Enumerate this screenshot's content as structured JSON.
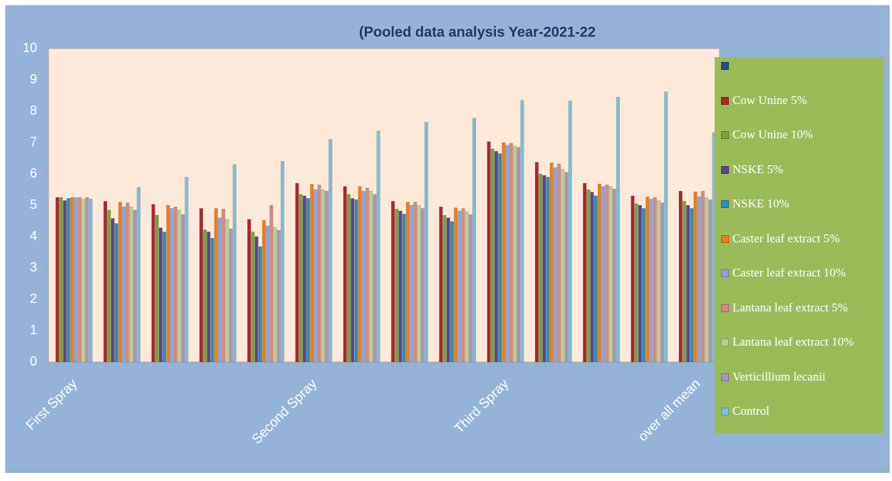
{
  "chart_data": {
    "type": "bar",
    "title": "(Pooled data analysis Year-2021-22",
    "categories": [
      "First Spray",
      null,
      null,
      null,
      null,
      "Second Spray",
      null,
      null,
      null,
      "Third Spray",
      null,
      null,
      null,
      "over all mean"
    ],
    "ylim": [
      0,
      10
    ],
    "yticks": [
      0,
      1,
      2,
      3,
      4,
      5,
      6,
      7,
      8,
      9,
      10
    ],
    "legend": "right",
    "series": [
      {
        "name": null,
        "color": "#2a4e8c",
        "values": [
          null,
          null,
          null,
          null,
          null,
          null,
          null,
          null,
          null,
          null,
          null,
          null,
          null,
          null
        ]
      },
      {
        "name": "Cow Unine 5%",
        "color": "#a52a2a",
        "values": [
          5.25,
          5.13,
          5.03,
          4.9,
          4.55,
          5.7,
          5.6,
          5.13,
          4.95,
          7.03,
          6.37,
          5.7,
          5.3,
          5.45
        ]
      },
      {
        "name": "Cow Unine 10%",
        "color": "#7ea03a",
        "values": [
          5.25,
          4.85,
          4.68,
          4.22,
          4.15,
          5.35,
          5.35,
          4.88,
          4.68,
          6.8,
          6.0,
          5.5,
          5.05,
          5.13
        ]
      },
      {
        "name": "NSKE 5%",
        "color": "#5e4390",
        "values": [
          5.15,
          4.58,
          4.28,
          4.15,
          4.0,
          5.3,
          5.22,
          4.82,
          4.6,
          6.72,
          5.95,
          5.42,
          5.0,
          5.0
        ]
      },
      {
        "name": "NSKE 10%",
        "color": "#2b8fb5",
        "values": [
          5.22,
          4.42,
          4.15,
          3.95,
          3.68,
          5.22,
          5.18,
          4.72,
          4.48,
          6.65,
          5.9,
          5.3,
          4.9,
          4.9
        ]
      },
      {
        "name": "Caster leaf extract 5%",
        "color": "#e6801f",
        "values": [
          5.25,
          5.1,
          5.0,
          4.9,
          4.52,
          5.67,
          5.6,
          5.1,
          4.92,
          7.0,
          6.35,
          5.68,
          5.27,
          5.43
        ]
      },
      {
        "name": "Caster leaf extract 10%",
        "color": "#8ea5d6",
        "values": [
          5.25,
          4.95,
          4.9,
          4.6,
          4.35,
          5.5,
          5.45,
          5.0,
          4.82,
          6.92,
          6.2,
          5.6,
          5.2,
          5.28
        ]
      },
      {
        "name": "Lantana leaf extract 5%",
        "color": "#d48a88",
        "values": [
          5.25,
          5.08,
          4.95,
          4.88,
          5.0,
          5.65,
          5.55,
          5.1,
          4.9,
          6.98,
          6.32,
          5.65,
          5.25,
          5.45
        ]
      },
      {
        "name": "Lantana leaf extract 10%",
        "color": "#b9d08d",
        "values": [
          5.2,
          4.95,
          4.85,
          4.55,
          4.3,
          5.5,
          5.45,
          5.0,
          4.8,
          6.9,
          6.15,
          5.6,
          5.15,
          5.25
        ]
      },
      {
        "name": "Verticillium lecanii",
        "color": "#a796c2",
        "values": [
          5.25,
          4.85,
          4.7,
          4.25,
          4.2,
          5.45,
          5.35,
          4.9,
          4.7,
          6.85,
          6.05,
          5.52,
          5.08,
          5.18
        ]
      },
      {
        "name": "Control",
        "color": "#7fbfd4",
        "values": [
          5.2,
          5.57,
          5.9,
          6.3,
          6.4,
          7.1,
          7.37,
          7.65,
          7.78,
          8.35,
          8.33,
          8.45,
          8.62,
          7.32
        ]
      }
    ]
  }
}
